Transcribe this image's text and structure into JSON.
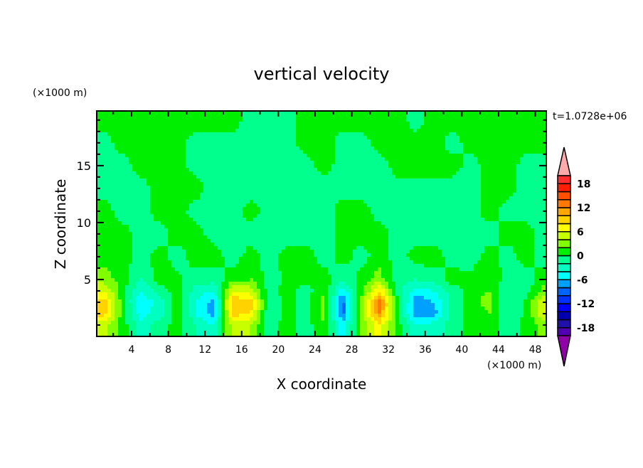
{
  "chart_data": {
    "type": "heatmap",
    "subtype": "filled-contour",
    "title": "vertical velocity",
    "xlabel": "X coordinate",
    "ylabel": "Z coordinate",
    "x_unit_label": "(×1000 m)",
    "y_unit_label": "(×1000 m)",
    "time_label": "t=1.0728e+06",
    "xlim": [
      0.2,
      49.2
    ],
    "ylim": [
      0,
      19.8
    ],
    "x_ticks": [
      4,
      8,
      12,
      16,
      20,
      24,
      28,
      32,
      36,
      40,
      44,
      48
    ],
    "y_ticks": [
      5,
      10,
      15
    ],
    "grid": false,
    "colorbar": {
      "placement": "right",
      "levels": [
        -20,
        -18,
        -16,
        -14,
        -12,
        -10,
        -8,
        -6,
        -4,
        -2,
        0,
        2,
        4,
        6,
        8,
        10,
        12,
        14,
        16,
        18,
        20
      ],
      "labels": [
        "18",
        "12",
        "6",
        "0",
        "-6",
        "-12",
        "-18"
      ],
      "label_values": [
        18,
        12,
        6,
        0,
        -6,
        -12,
        -18
      ],
      "colors": [
        "#9000a8",
        "#5000b0",
        "#1e10a8",
        "#0000b0",
        "#0000ff",
        "#0032ff",
        "#0064ff",
        "#00a0ff",
        "#00ffff",
        "#00ffc0",
        "#00ff8c",
        "#00ee00",
        "#80ff00",
        "#c8ff00",
        "#ffff00",
        "#ffd200",
        "#ffa500",
        "#ff7800",
        "#ff5000",
        "#ff1e00",
        "#ff2d2d",
        "#ffaaaa"
      ]
    },
    "grid_x": [
      1,
      3,
      5,
      7,
      9,
      11,
      13,
      15,
      17,
      19,
      21,
      23,
      25,
      27,
      29,
      31,
      33,
      35,
      37,
      39,
      41,
      43,
      45,
      47,
      49
    ],
    "grid_z": [
      1,
      2,
      3,
      4,
      5,
      7,
      9,
      11,
      13,
      15,
      17,
      19
    ],
    "values": [
      [
        5,
        1,
        -3,
        -1,
        1,
        -2,
        -4,
        5,
        4,
        -1,
        1,
        -1,
        2,
        -5,
        2,
        7,
        1,
        -4,
        -3,
        -1,
        1,
        1,
        -1,
        0.5,
        3
      ],
      [
        9,
        1,
        -5,
        -3,
        1,
        -4,
        -7,
        9,
        8,
        -2,
        1,
        -1,
        3,
        -9,
        3,
        12,
        1,
        -8,
        -7,
        -1,
        1,
        2,
        -2,
        0.5,
        6
      ],
      [
        9,
        1,
        -6,
        -3,
        1,
        -4,
        -7,
        10,
        9,
        -2,
        1,
        -1,
        3,
        -9,
        3,
        13,
        1,
        -8,
        -6,
        -1,
        1,
        3,
        -2,
        0.5,
        6
      ],
      [
        6,
        1,
        -4,
        -1,
        1,
        -3,
        -4,
        6,
        5,
        -1,
        1,
        -1,
        2,
        -5,
        1,
        8,
        -1,
        -5,
        -4,
        -1,
        1,
        2,
        -2,
        -1,
        3
      ],
      [
        3,
        1,
        -2,
        1,
        0.5,
        -1,
        -1,
        1,
        2,
        -1,
        0.5,
        0.5,
        1,
        -2,
        1,
        3,
        -1,
        -2,
        -1,
        1,
        0.5,
        2,
        -1,
        -1,
        1
      ],
      [
        1,
        1,
        -1,
        1,
        -1,
        1,
        1,
        -1,
        1,
        -1,
        1,
        1,
        -1,
        1,
        -1,
        1,
        -1,
        1,
        1,
        -1,
        -1,
        1,
        -1,
        1,
        -1
      ],
      [
        1,
        1,
        -1,
        -1,
        1,
        1,
        -1,
        -1,
        -1,
        -1,
        -1,
        -1,
        -1,
        1,
        1,
        1,
        -1,
        -1,
        -1,
        -1,
        -1,
        -1,
        1,
        1,
        -1
      ],
      [
        1,
        -1,
        -1,
        1,
        1,
        -1,
        -1,
        -1,
        1,
        -1,
        -1,
        -1,
        -1,
        1,
        1,
        -1,
        -1,
        -1,
        -1,
        -1,
        -1,
        1,
        -1,
        -1,
        -1
      ],
      [
        -1,
        -1,
        -1,
        1,
        1,
        1,
        -1,
        -1,
        -1,
        -1,
        -1,
        -1,
        -1,
        -1,
        -1,
        -1,
        -1,
        -1,
        -1,
        -1,
        -1,
        1,
        1,
        -1,
        -1
      ],
      [
        -1,
        -1,
        1,
        1,
        1,
        -1,
        -1,
        -1,
        -1,
        -1,
        -1,
        -1,
        1,
        -1,
        -1,
        -1,
        1,
        1,
        1,
        1,
        -1,
        1,
        1,
        -1,
        -1
      ],
      [
        -1,
        1,
        1,
        1,
        1,
        -1,
        -1,
        -1,
        -1,
        -1,
        -1,
        1,
        1,
        -1,
        -1,
        1,
        1,
        1,
        1,
        -1,
        1,
        1,
        1,
        1,
        1
      ],
      [
        1,
        1,
        1,
        1,
        1,
        1,
        1,
        1,
        -1,
        -1,
        -1,
        1,
        1,
        1,
        1,
        1,
        1,
        -1,
        1,
        1,
        1,
        1,
        1,
        1,
        1
      ]
    ]
  }
}
